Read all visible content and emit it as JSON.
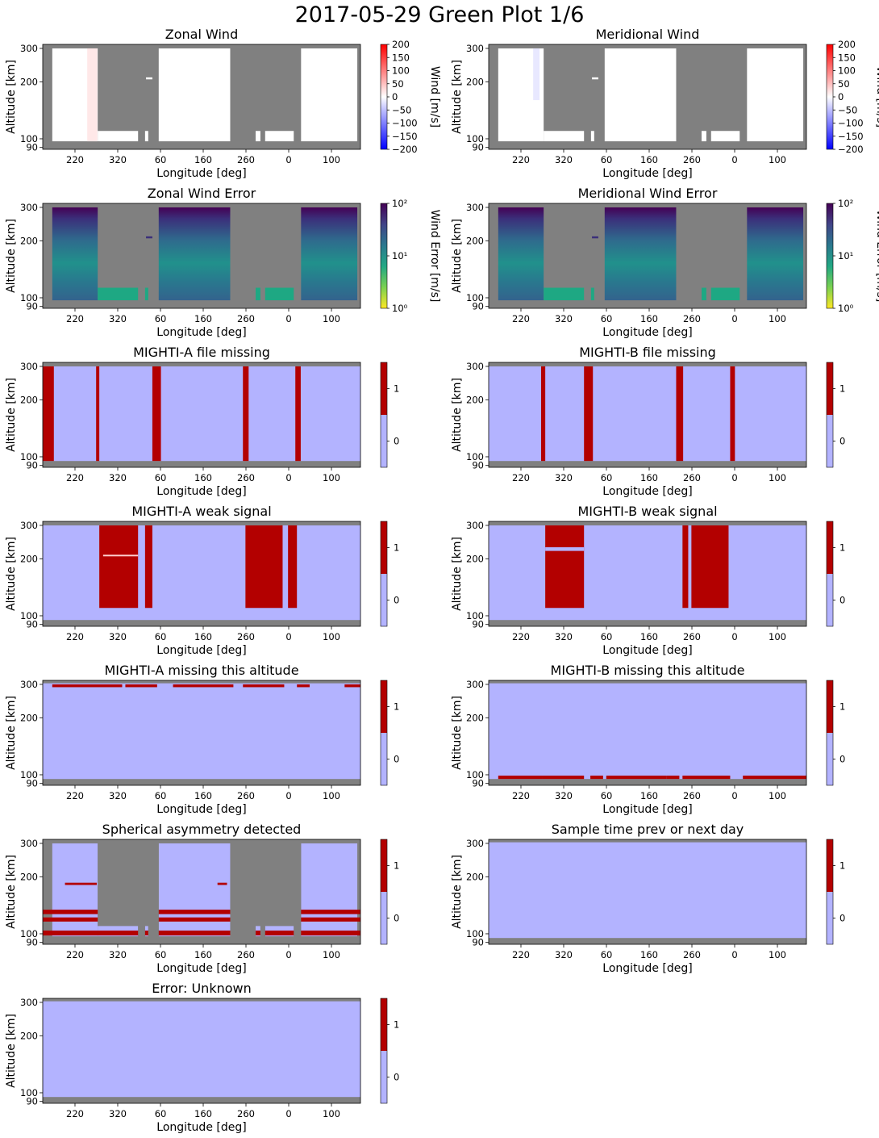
{
  "figure": {
    "title": "2017-05-29 Green Plot 1/6"
  },
  "colors": {
    "missing": "#808080",
    "flag_off": "#b3b3ff",
    "flag_on": "#b30000",
    "wind_low": "#0000ff",
    "wind_mid": "#ffffff",
    "wind_high": "#ff0000"
  },
  "axes_common": {
    "xlabel": "Longitude [deg]",
    "ylabel": "Altitude [km]",
    "x_ticks": [
      "220",
      "320",
      "60",
      "160",
      "260",
      "0",
      "100"
    ],
    "y_ticks": [
      90,
      100,
      200,
      300
    ],
    "y_scale": "log",
    "y_range": [
      88,
      315
    ]
  },
  "chart_data": [
    {
      "id": "zonal_wind",
      "type": "heatmap",
      "title": "Zonal Wind",
      "colorbar": {
        "label": "Wind [m/s]",
        "scale": "linear",
        "range": [
          -200,
          200
        ],
        "ticks": [
          "200",
          "150",
          "100",
          "50",
          "0",
          "−50",
          "−100",
          "−150",
          "−200"
        ]
      }
    },
    {
      "id": "meridional_wind",
      "type": "heatmap",
      "title": "Meridional Wind",
      "colorbar": {
        "label": "Wind [m/s]",
        "scale": "linear",
        "range": [
          -200,
          200
        ],
        "ticks": [
          "200",
          "150",
          "100",
          "50",
          "0",
          "−50",
          "−100",
          "−150",
          "−200"
        ]
      }
    },
    {
      "id": "zonal_wind_error",
      "type": "heatmap",
      "title": "Zonal Wind Error",
      "colorbar": {
        "label": "Wind Error [m/s]",
        "scale": "log",
        "range": [
          1,
          100
        ],
        "ticks": [
          "10²",
          "10¹",
          "10⁰"
        ]
      }
    },
    {
      "id": "meridional_wind_error",
      "type": "heatmap",
      "title": "Meridional Wind Error",
      "colorbar": {
        "label": "Wind Error [m/s]",
        "scale": "log",
        "range": [
          1,
          100
        ],
        "ticks": [
          "10²",
          "10¹",
          "10⁰"
        ]
      }
    },
    {
      "id": "a_file_missing",
      "type": "heatmap",
      "title": "MIGHTI-A file missing",
      "colorbar": {
        "label": "",
        "scale": "discrete",
        "ticks": [
          "1",
          "0"
        ]
      }
    },
    {
      "id": "b_file_missing",
      "type": "heatmap",
      "title": "MIGHTI-B file missing",
      "colorbar": {
        "label": "",
        "scale": "discrete",
        "ticks": [
          "1",
          "0"
        ]
      }
    },
    {
      "id": "a_weak_signal",
      "type": "heatmap",
      "title": "MIGHTI-A weak signal",
      "colorbar": {
        "label": "",
        "scale": "discrete",
        "ticks": [
          "1",
          "0"
        ]
      }
    },
    {
      "id": "b_weak_signal",
      "type": "heatmap",
      "title": "MIGHTI-B weak signal",
      "colorbar": {
        "label": "",
        "scale": "discrete",
        "ticks": [
          "1",
          "0"
        ]
      }
    },
    {
      "id": "a_missing_alt",
      "type": "heatmap",
      "title": "MIGHTI-A missing this altitude",
      "colorbar": {
        "label": "",
        "scale": "discrete",
        "ticks": [
          "1",
          "0"
        ]
      }
    },
    {
      "id": "b_missing_alt",
      "type": "heatmap",
      "title": "MIGHTI-B missing this altitude",
      "colorbar": {
        "label": "",
        "scale": "discrete",
        "ticks": [
          "1",
          "0"
        ]
      }
    },
    {
      "id": "spherical_asym",
      "type": "heatmap",
      "title": "Spherical asymmetry detected",
      "colorbar": {
        "label": "",
        "scale": "discrete",
        "ticks": [
          "1",
          "0"
        ]
      }
    },
    {
      "id": "sample_time",
      "type": "heatmap",
      "title": "Sample time prev or next day",
      "colorbar": {
        "label": "",
        "scale": "discrete",
        "ticks": [
          "1",
          "0"
        ]
      }
    },
    {
      "id": "error_unknown",
      "type": "heatmap",
      "title": "Error: Unknown",
      "colorbar": {
        "label": "",
        "scale": "discrete",
        "ticks": [
          "1",
          "0"
        ]
      }
    }
  ]
}
